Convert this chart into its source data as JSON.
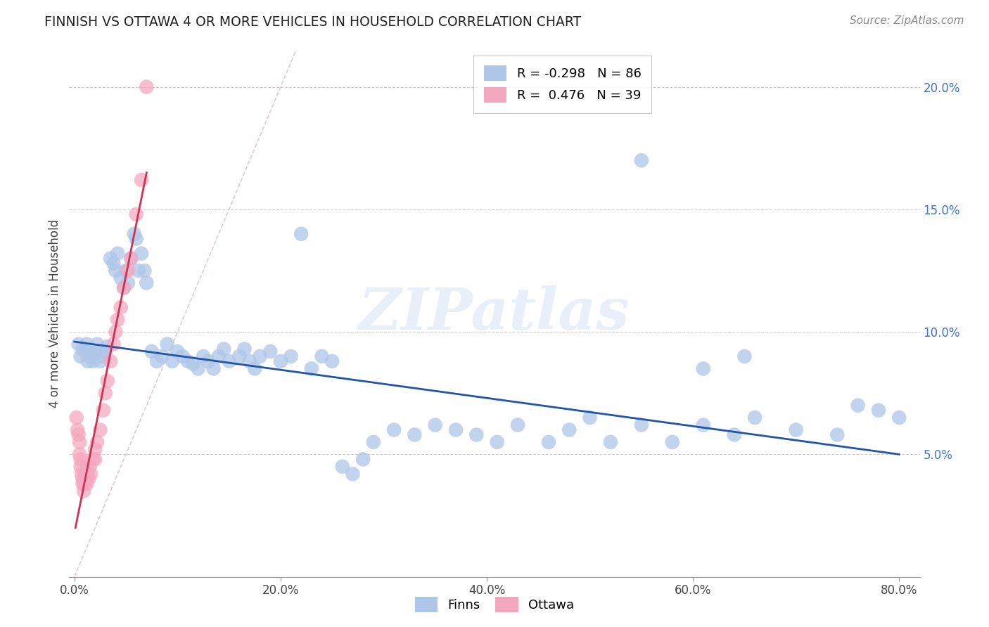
{
  "title": "FINNISH VS OTTAWA 4 OR MORE VEHICLES IN HOUSEHOLD CORRELATION CHART",
  "source": "Source: ZipAtlas.com",
  "ylabel": "4 or more Vehicles in Household",
  "xlabel_ticks": [
    "0.0%",
    "20.0%",
    "40.0%",
    "60.0%",
    "80.0%"
  ],
  "xlabel_vals": [
    0.0,
    0.2,
    0.4,
    0.6,
    0.8
  ],
  "ylabel_ticks": [
    "5.0%",
    "10.0%",
    "15.0%",
    "20.0%"
  ],
  "ylabel_vals": [
    0.05,
    0.1,
    0.15,
    0.2
  ],
  "ylim": [
    0.0,
    0.215
  ],
  "xlim": [
    -0.005,
    0.82
  ],
  "watermark": "ZIPatlas",
  "finns_color": "#aec6e8",
  "ottawa_color": "#f4a8c0",
  "trendline_finns_color": "#2255aa",
  "trendline_ottawa_color": "#cc3355",
  "trendline_diag_color": "#ddbbcc",
  "legend_label_finns": "R = -0.298   N = 86",
  "legend_label_ottawa": "R =  0.476   N = 39",
  "finns_x": [
    0.004,
    0.006,
    0.008,
    0.01,
    0.012,
    0.013,
    0.015,
    0.016,
    0.018,
    0.02,
    0.022,
    0.025,
    0.028,
    0.03,
    0.032,
    0.035,
    0.038,
    0.04,
    0.042,
    0.045,
    0.048,
    0.05,
    0.052,
    0.055,
    0.058,
    0.06,
    0.062,
    0.065,
    0.068,
    0.07,
    0.075,
    0.08,
    0.085,
    0.09,
    0.095,
    0.1,
    0.105,
    0.11,
    0.115,
    0.12,
    0.125,
    0.13,
    0.135,
    0.14,
    0.145,
    0.15,
    0.16,
    0.165,
    0.17,
    0.175,
    0.18,
    0.19,
    0.2,
    0.21,
    0.22,
    0.23,
    0.24,
    0.25,
    0.26,
    0.27,
    0.28,
    0.29,
    0.31,
    0.33,
    0.35,
    0.37,
    0.39,
    0.41,
    0.43,
    0.46,
    0.48,
    0.5,
    0.52,
    0.55,
    0.58,
    0.61,
    0.64,
    0.66,
    0.7,
    0.74,
    0.76,
    0.78,
    0.8,
    0.61,
    0.65,
    0.55
  ],
  "finns_y": [
    0.095,
    0.09,
    0.093,
    0.092,
    0.095,
    0.088,
    0.09,
    0.092,
    0.088,
    0.092,
    0.095,
    0.088,
    0.09,
    0.092,
    0.094,
    0.13,
    0.128,
    0.125,
    0.132,
    0.122,
    0.118,
    0.125,
    0.12,
    0.13,
    0.14,
    0.138,
    0.125,
    0.132,
    0.125,
    0.12,
    0.092,
    0.088,
    0.09,
    0.095,
    0.088,
    0.092,
    0.09,
    0.088,
    0.087,
    0.085,
    0.09,
    0.088,
    0.085,
    0.09,
    0.093,
    0.088,
    0.09,
    0.093,
    0.088,
    0.085,
    0.09,
    0.092,
    0.088,
    0.09,
    0.14,
    0.085,
    0.09,
    0.088,
    0.045,
    0.042,
    0.048,
    0.055,
    0.06,
    0.058,
    0.062,
    0.06,
    0.058,
    0.055,
    0.062,
    0.055,
    0.06,
    0.065,
    0.055,
    0.062,
    0.055,
    0.062,
    0.058,
    0.065,
    0.06,
    0.058,
    0.07,
    0.068,
    0.065,
    0.085,
    0.09,
    0.17
  ],
  "ottawa_x": [
    0.002,
    0.003,
    0.004,
    0.005,
    0.005,
    0.006,
    0.006,
    0.007,
    0.008,
    0.008,
    0.009,
    0.01,
    0.01,
    0.011,
    0.012,
    0.012,
    0.013,
    0.014,
    0.015,
    0.016,
    0.018,
    0.02,
    0.02,
    0.022,
    0.025,
    0.028,
    0.03,
    0.032,
    0.035,
    0.038,
    0.04,
    0.042,
    0.045,
    0.048,
    0.052,
    0.055,
    0.06,
    0.065,
    0.07
  ],
  "ottawa_y": [
    0.065,
    0.06,
    0.058,
    0.055,
    0.05,
    0.048,
    0.045,
    0.042,
    0.04,
    0.038,
    0.035,
    0.042,
    0.038,
    0.04,
    0.045,
    0.038,
    0.042,
    0.04,
    0.045,
    0.042,
    0.048,
    0.052,
    0.048,
    0.055,
    0.06,
    0.068,
    0.075,
    0.08,
    0.088,
    0.095,
    0.1,
    0.105,
    0.11,
    0.118,
    0.125,
    0.13,
    0.148,
    0.162,
    0.2
  ]
}
